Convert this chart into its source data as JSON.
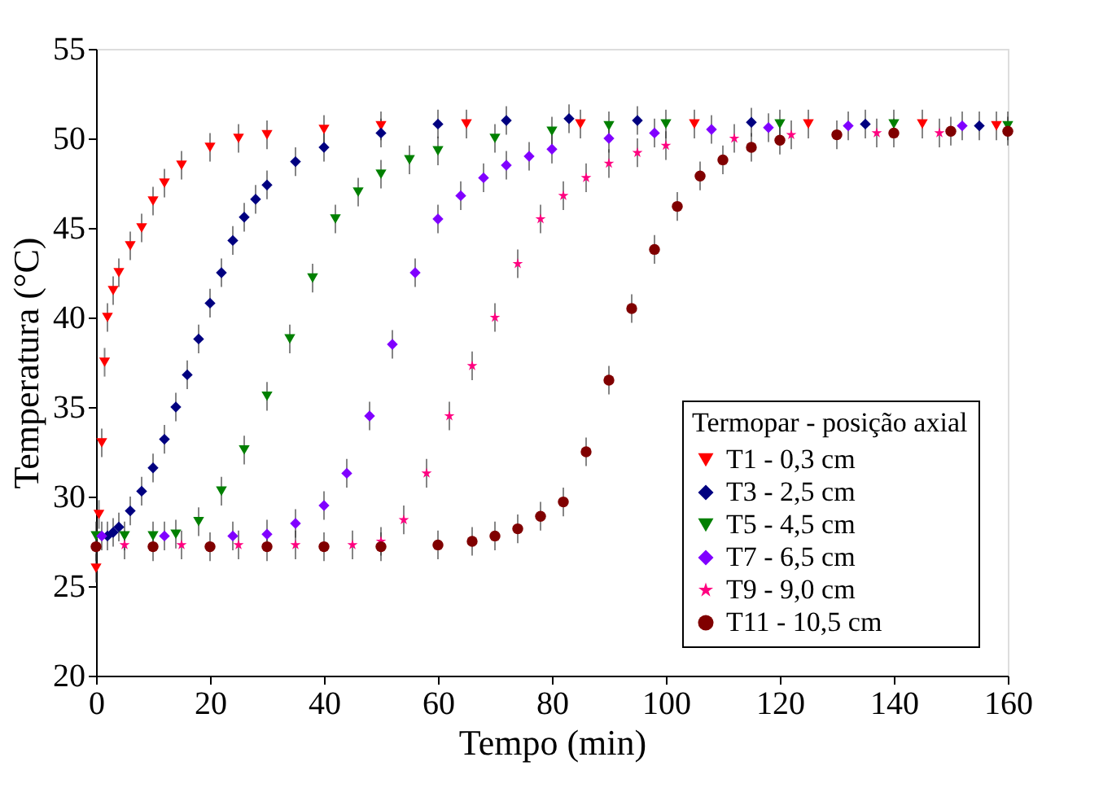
{
  "chart_data": {
    "type": "scatter",
    "xlabel": "Tempo (min)",
    "ylabel": "Temperatura (°C)",
    "legend_title": "Termopar - posição axial",
    "legend": "bottom right",
    "grid": false,
    "xlim": [
      0,
      160
    ],
    "xticks": [
      0,
      20,
      40,
      60,
      80,
      100,
      120,
      140,
      160
    ],
    "ylim": [
      20,
      55
    ],
    "yticks": [
      20,
      25,
      30,
      35,
      40,
      45,
      50,
      55
    ],
    "series": [
      {
        "name": "T1 - 0,3 cm",
        "color": "#ff0000",
        "marker": "triangle",
        "x": [
          0,
          0.5,
          1,
          1.5,
          2,
          3,
          4,
          6,
          8,
          10,
          12,
          15,
          20,
          25,
          30,
          40,
          50,
          65,
          85,
          105,
          125,
          145,
          158
        ],
        "values": [
          26,
          29,
          33,
          37.5,
          40,
          41.5,
          42.5,
          44,
          45,
          46.5,
          47.5,
          48.5,
          49.5,
          50,
          50.2,
          50.5,
          50.7,
          50.8,
          50.8,
          50.8,
          50.8,
          50.8,
          50.7
        ],
        "errors": [
          0.8,
          0.8,
          0.8,
          0.8,
          0.8,
          0.8,
          0.8,
          0.8,
          0.8,
          0.8,
          0.8,
          0.8,
          0.8,
          0.8,
          0.8,
          0.8,
          0.8,
          0.8,
          0.8,
          0.8,
          0.8,
          0.8,
          0.8
        ]
      },
      {
        "name": "T3 - 2,5 cm",
        "color": "#000080",
        "marker": "diamond",
        "x": [
          3,
          2,
          4,
          6,
          8,
          10,
          12,
          14,
          16,
          18,
          20,
          22,
          24,
          26,
          28,
          30,
          35,
          40,
          50,
          60,
          72,
          83,
          95,
          115,
          135,
          155
        ],
        "values": [
          28,
          27.8,
          28.3,
          29.2,
          30.3,
          31.6,
          33.2,
          35,
          36.8,
          38.8,
          40.8,
          42.5,
          44.3,
          45.6,
          46.6,
          47.4,
          48.7,
          49.5,
          50.3,
          50.8,
          51,
          51.1,
          51,
          50.9,
          50.8,
          50.7
        ],
        "errors": [
          0.8,
          0.8,
          0.8,
          0.8,
          0.8,
          0.8,
          0.8,
          0.8,
          0.8,
          0.8,
          0.8,
          0.8,
          0.8,
          0.8,
          0.8,
          0.8,
          0.8,
          0.8,
          0.8,
          0.8,
          0.8,
          0.8,
          0.8,
          0.8,
          0.8,
          0.8
        ]
      },
      {
        "name": "T5 - 4,5 cm",
        "color": "#008000",
        "marker": "triangle",
        "x": [
          0,
          5,
          10,
          14,
          18,
          22,
          26,
          30,
          34,
          38,
          42,
          46,
          50,
          55,
          60,
          70,
          80,
          90,
          100,
          120,
          140,
          160
        ],
        "values": [
          27.8,
          27.8,
          27.8,
          27.9,
          28.6,
          30.3,
          32.6,
          35.6,
          38.8,
          42.2,
          45.5,
          47,
          48,
          48.8,
          49.3,
          50,
          50.4,
          50.7,
          50.8,
          50.8,
          50.8,
          50.7
        ],
        "errors": [
          0.8,
          0.8,
          0.8,
          0.8,
          0.8,
          0.8,
          0.8,
          0.8,
          0.8,
          0.8,
          0.8,
          0.8,
          0.8,
          0.8,
          0.8,
          0.8,
          0.8,
          0.8,
          0.8,
          0.8,
          0.8,
          0.8
        ]
      },
      {
        "name": "T7 - 6,5 cm",
        "color": "#8000ff",
        "marker": "diamond",
        "x": [
          1,
          12,
          24,
          30,
          35,
          40,
          44,
          48,
          52,
          56,
          60,
          64,
          68,
          72,
          76,
          80,
          90,
          98,
          108,
          118,
          132,
          152
        ],
        "values": [
          27.8,
          27.8,
          27.8,
          27.9,
          28.5,
          29.5,
          31.3,
          34.5,
          38.5,
          42.5,
          45.5,
          46.8,
          47.8,
          48.5,
          49,
          49.4,
          50,
          50.3,
          50.5,
          50.6,
          50.7,
          50.7
        ],
        "errors": [
          0.8,
          0.8,
          0.8,
          0.8,
          0.8,
          0.8,
          0.8,
          0.8,
          0.8,
          0.8,
          0.8,
          0.8,
          0.8,
          0.8,
          0.8,
          0.8,
          0.8,
          0.8,
          0.8,
          0.8,
          0.8,
          0.8
        ]
      },
      {
        "name": "T9 - 9,0 cm",
        "color": "#ff0080",
        "marker": "star",
        "x": [
          5,
          15,
          25,
          35,
          45,
          50,
          54,
          58,
          62,
          66,
          70,
          74,
          78,
          82,
          86,
          90,
          95,
          100,
          112,
          122,
          137,
          148
        ],
        "values": [
          27.3,
          27.3,
          27.3,
          27.3,
          27.3,
          27.5,
          28.7,
          31.3,
          34.5,
          37.3,
          40,
          43,
          45.5,
          46.8,
          47.8,
          48.6,
          49.2,
          49.6,
          50,
          50.2,
          50.3,
          50.3
        ],
        "errors": [
          0.8,
          0.8,
          0.8,
          0.8,
          0.8,
          0.8,
          0.8,
          0.8,
          0.8,
          0.8,
          0.8,
          0.8,
          0.8,
          0.8,
          0.8,
          0.8,
          0.8,
          0.8,
          0.8,
          0.8,
          0.8,
          0.8
        ]
      },
      {
        "name": "T11 - 10,5 cm",
        "color": "#800000",
        "marker": "circle",
        "x": [
          0,
          10,
          20,
          30,
          40,
          50,
          60,
          66,
          70,
          74,
          78,
          82,
          86,
          90,
          94,
          98,
          102,
          106,
          110,
          115,
          120,
          130,
          140,
          150,
          160
        ],
        "values": [
          27.2,
          27.2,
          27.2,
          27.2,
          27.2,
          27.2,
          27.3,
          27.5,
          27.8,
          28.2,
          28.9,
          29.7,
          32.5,
          36.5,
          40.5,
          43.8,
          46.2,
          47.9,
          48.8,
          49.5,
          49.9,
          50.2,
          50.3,
          50.4,
          50.4
        ],
        "errors": [
          0.8,
          0.8,
          0.8,
          0.8,
          0.8,
          0.8,
          0.8,
          0.8,
          0.8,
          0.8,
          0.8,
          0.8,
          0.8,
          0.8,
          0.8,
          0.8,
          0.8,
          0.8,
          0.8,
          0.8,
          0.8,
          0.8,
          0.8,
          0.8,
          0.8
        ]
      }
    ]
  }
}
